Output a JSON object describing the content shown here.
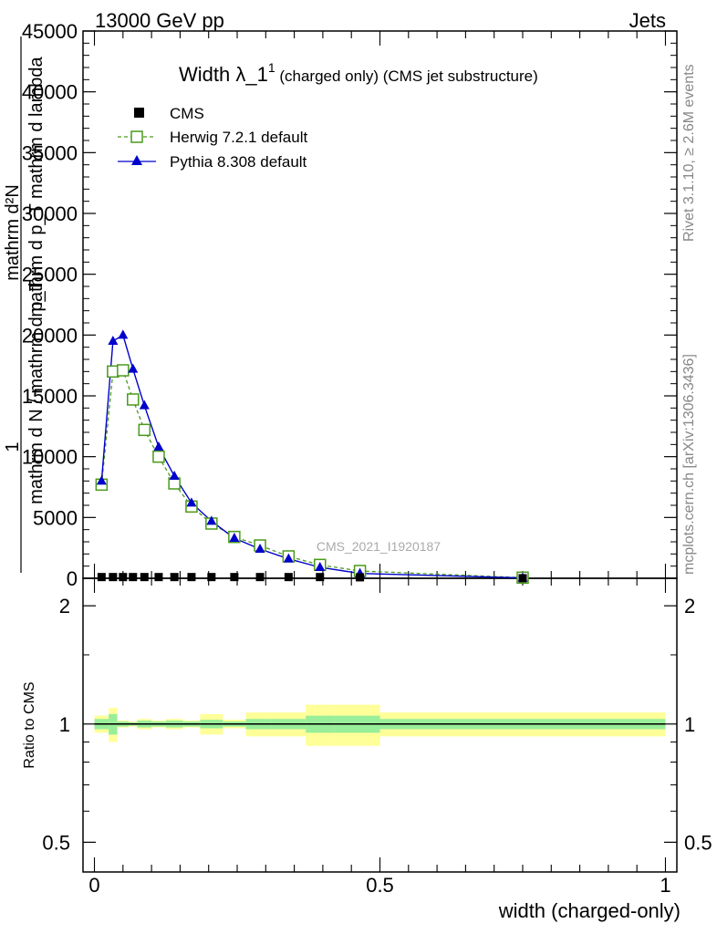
{
  "header": {
    "left": "13000 GeV pp",
    "right": "Jets"
  },
  "side_labels": {
    "rivet": "Rivet 3.1.10, ≥ 2.6M events",
    "mcplots": "mcplots.cern.ch [arXiv:1306.3436]"
  },
  "watermark": "CMS_2021_I1920187",
  "upper_title": {
    "main": "Width λ_1",
    "sup": "1",
    "rest": " (charged only) (CMS jet substructure)"
  },
  "upper_ylabel": {
    "num": "mathrm d²N",
    "den": "mathrm d p_T mathrm d lambda",
    "prefix_num": "1",
    "prefix_den": "mathrm d N / mathrm d p_T"
  },
  "legend": [
    {
      "label": "CMS",
      "color": "#000000",
      "marker": "square-filled"
    },
    {
      "label": "Herwig 7.2.1 default",
      "color": "#4a9a1a",
      "marker": "square-open"
    },
    {
      "label": "Pythia 8.308 default",
      "color": "#0000cc",
      "marker": "triangle"
    }
  ],
  "upper_ticks": [
    "0",
    "5000",
    "10000",
    "15000",
    "20000",
    "25000",
    "30000",
    "35000",
    "40000",
    "45000"
  ],
  "ratio_ylabel": "Ratio to CMS",
  "ratio_ticks": [
    "0.5",
    "1",
    "2"
  ],
  "xlabel": "width (charged-only)",
  "x_ticks": [
    "0",
    "0.5",
    "1"
  ],
  "chart_data": {
    "type": "line",
    "xlim": [
      -0.02,
      1.02
    ],
    "ylim": [
      0,
      45000
    ],
    "x": [
      0.0125,
      0.0325,
      0.05,
      0.0675,
      0.0875,
      0.1125,
      0.14,
      0.17,
      0.205,
      0.245,
      0.29,
      0.34,
      0.395,
      0.465,
      0.75
    ],
    "series": [
      {
        "name": "CMS",
        "values": [
          100,
          100,
          100,
          100,
          100,
          100,
          100,
          100,
          100,
          100,
          100,
          100,
          100,
          80,
          5
        ]
      },
      {
        "name": "Herwig 7.2.1 default",
        "values": [
          7700,
          17000,
          17100,
          14700,
          12200,
          10000,
          7800,
          5900,
          4500,
          3400,
          2700,
          1800,
          1100,
          600,
          50
        ]
      },
      {
        "name": "Pythia 8.308 default",
        "values": [
          8000,
          19500,
          20000,
          17200,
          14200,
          10800,
          8400,
          6200,
          4700,
          3300,
          2400,
          1600,
          900,
          400,
          30
        ]
      }
    ],
    "ratio": {
      "ylim": [
        0.42,
        2.35
      ],
      "scale": "log",
      "band_edges": [
        0.0,
        0.025,
        0.04,
        0.06,
        0.075,
        0.1,
        0.125,
        0.155,
        0.185,
        0.225,
        0.265,
        0.31,
        0.37,
        0.42,
        0.5,
        1.0
      ],
      "stat_band_half": [
        0.03,
        0.06,
        0.015,
        0.01,
        0.02,
        0.015,
        0.02,
        0.015,
        0.025,
        0.015,
        0.03,
        0.03,
        0.05,
        0.05,
        0.03
      ],
      "total_band_half": [
        0.05,
        0.1,
        0.02,
        0.015,
        0.03,
        0.02,
        0.03,
        0.02,
        0.06,
        0.025,
        0.07,
        0.07,
        0.12,
        0.12,
        0.07
      ]
    }
  },
  "colors": {
    "herwig": "#4a9a1a",
    "pythia": "#0000cc",
    "stat_band": "#99ee99",
    "total_band": "#ffff99"
  }
}
